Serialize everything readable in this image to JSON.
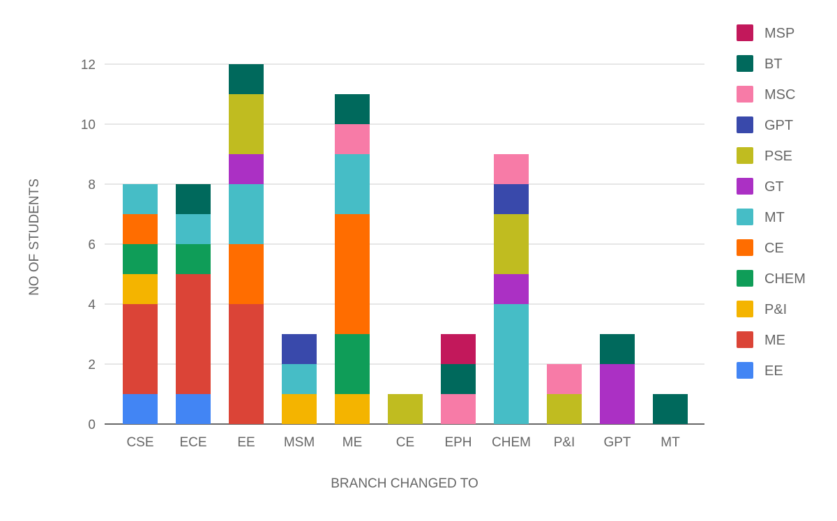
{
  "chart_data": {
    "type": "bar",
    "stacked": true,
    "xlabel": "BRANCH CHANGED TO",
    "ylabel": "NO OF STUDENTS",
    "ylim": [
      0,
      12
    ],
    "yticks": [
      0,
      2,
      4,
      6,
      8,
      10,
      12
    ],
    "grid": true,
    "legend_position": "right",
    "categories": [
      "CSE",
      "ECE",
      "EE",
      "MSM",
      "ME",
      "CE",
      "EPH",
      "CHEM",
      "P&I",
      "GPT",
      "MT"
    ],
    "series": [
      {
        "name": "EE",
        "color": "#4285f4",
        "values": [
          1,
          1,
          0,
          0,
          0,
          0,
          0,
          0,
          0,
          0,
          0
        ]
      },
      {
        "name": "ME",
        "color": "#db4437",
        "values": [
          3,
          4,
          4,
          0,
          0,
          0,
          0,
          0,
          0,
          0,
          0
        ]
      },
      {
        "name": "P&I",
        "color": "#f4b400",
        "values": [
          1,
          0,
          0,
          1,
          1,
          0,
          0,
          0,
          0,
          0,
          0
        ]
      },
      {
        "name": "CHEM",
        "color": "#0f9d58",
        "values": [
          1,
          1,
          0,
          0,
          2,
          0,
          0,
          0,
          0,
          0,
          0
        ]
      },
      {
        "name": "CE",
        "color": "#ff6d00",
        "values": [
          1,
          0,
          2,
          0,
          4,
          0,
          0,
          0,
          0,
          0,
          0
        ]
      },
      {
        "name": "MT",
        "color": "#46bdc6",
        "values": [
          1,
          1,
          2,
          1,
          2,
          0,
          0,
          4,
          0,
          0,
          0
        ]
      },
      {
        "name": "GT",
        "color": "#ab30c4",
        "values": [
          0,
          0,
          1,
          0,
          0,
          0,
          0,
          1,
          0,
          2,
          0
        ]
      },
      {
        "name": "PSE",
        "color": "#c0bc20",
        "values": [
          0,
          0,
          2,
          0,
          0,
          1,
          0,
          2,
          1,
          0,
          0
        ]
      },
      {
        "name": "GPT",
        "color": "#3949ab",
        "values": [
          0,
          0,
          0,
          1,
          0,
          0,
          0,
          1,
          0,
          0,
          0
        ]
      },
      {
        "name": "MSC",
        "color": "#f77ba7",
        "values": [
          0,
          0,
          0,
          0,
          1,
          0,
          1,
          1,
          1,
          0,
          0
        ]
      },
      {
        "name": "BT",
        "color": "#00695c",
        "values": [
          0,
          1,
          1,
          0,
          1,
          0,
          1,
          0,
          0,
          1,
          1
        ]
      },
      {
        "name": "MSP",
        "color": "#c2185b",
        "values": [
          0,
          0,
          0,
          0,
          0,
          0,
          1,
          0,
          0,
          0,
          0
        ]
      }
    ]
  }
}
